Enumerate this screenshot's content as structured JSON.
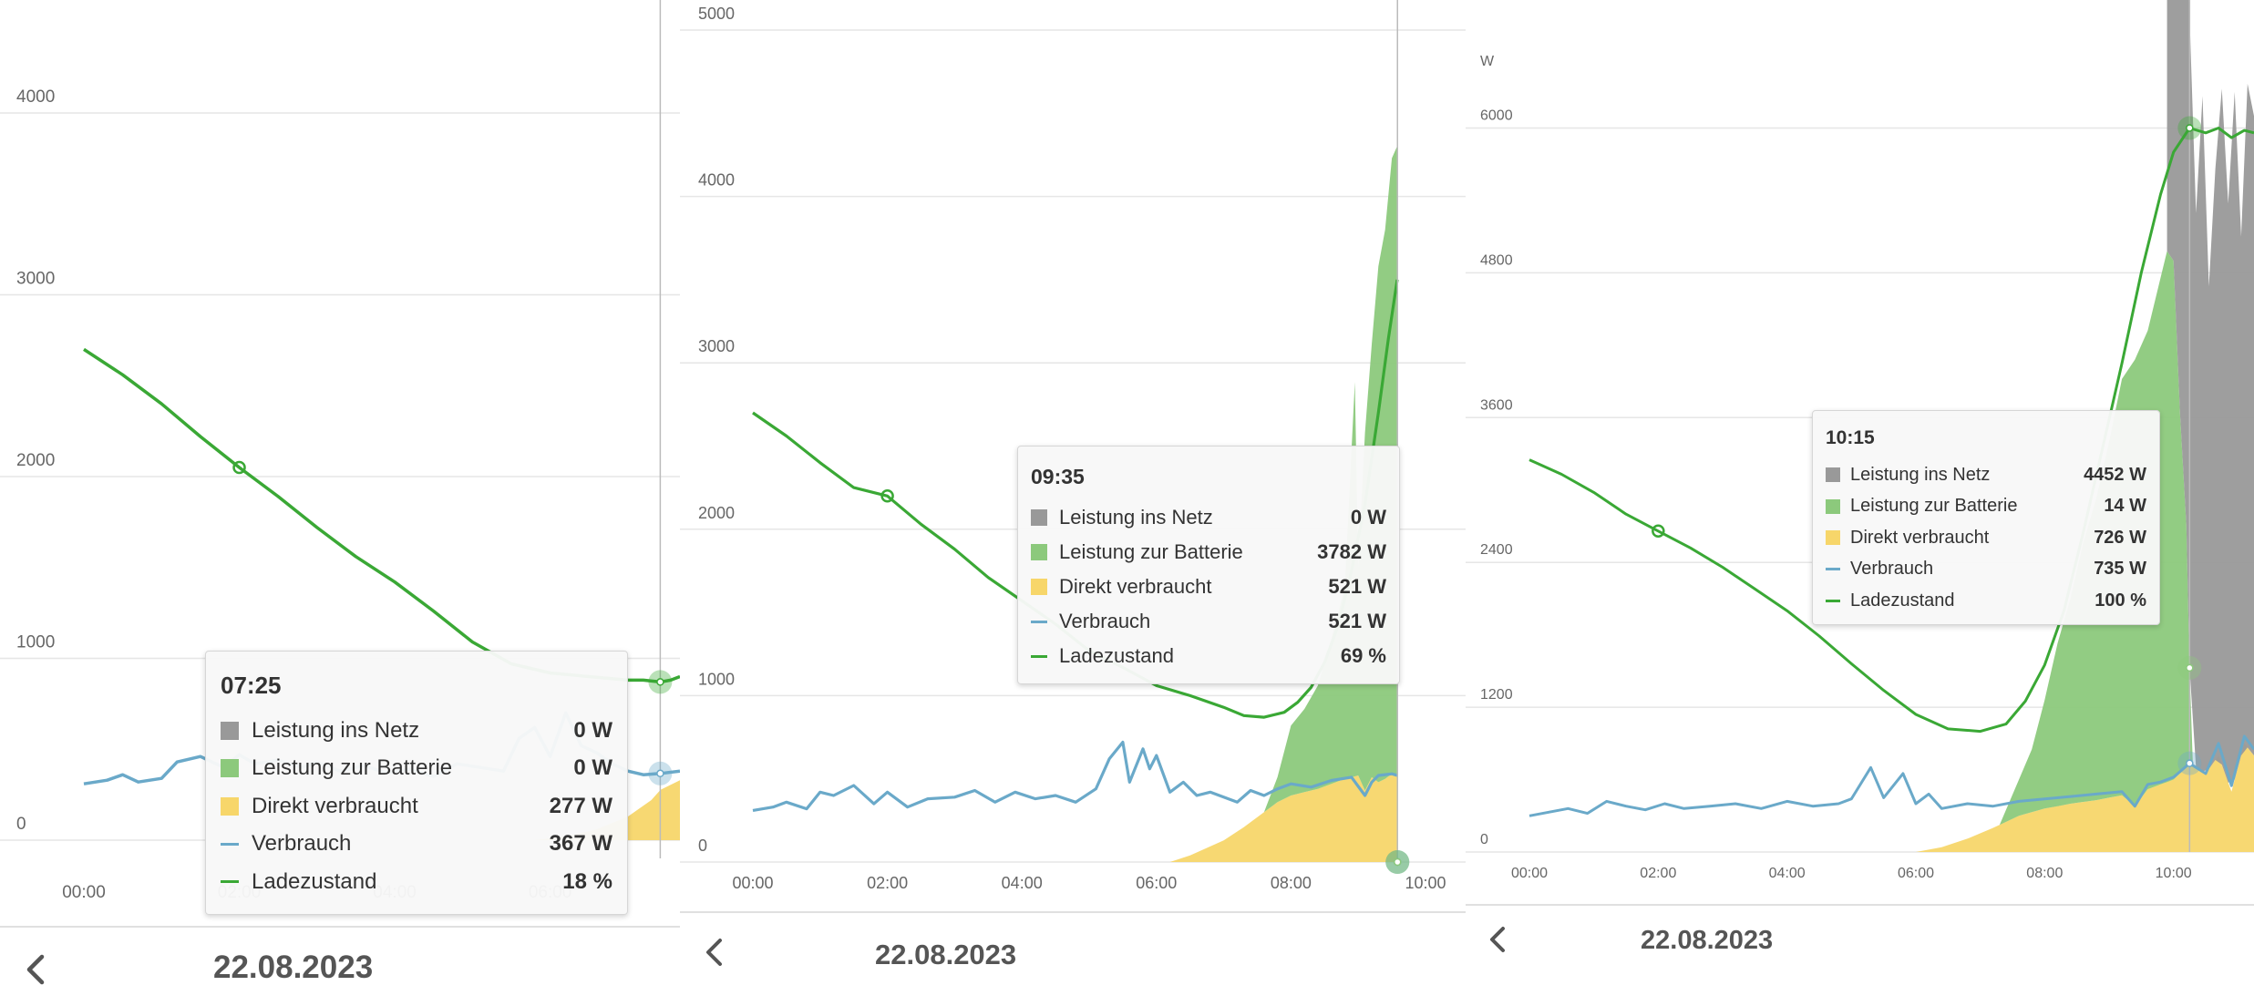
{
  "colors": {
    "grid_feed": "#999999",
    "battery": "#8cc97c",
    "direct": "#f7d66a",
    "consumption": "#6aa9c9",
    "soc": "#3aa835"
  },
  "icons": {
    "back": "chevron-left-icon"
  },
  "panels": [
    {
      "date": "22.08.2023",
      "tooltip": {
        "time": "07:25",
        "rows": [
          {
            "name": "Leistung ins Netz",
            "value": "0 W"
          },
          {
            "name": "Leistung zur Batterie",
            "value": "0 W"
          },
          {
            "name": "Direkt verbraucht",
            "value": "277 W"
          },
          {
            "name": "Verbrauch",
            "value": "367 W"
          },
          {
            "name": "Ladezustand",
            "value": "18 %"
          }
        ]
      }
    },
    {
      "date": "22.08.2023",
      "tooltip": {
        "time": "09:35",
        "rows": [
          {
            "name": "Leistung ins Netz",
            "value": "0 W"
          },
          {
            "name": "Leistung zur Batterie",
            "value": "3782 W"
          },
          {
            "name": "Direkt verbraucht",
            "value": "521 W"
          },
          {
            "name": "Verbrauch",
            "value": "521 W"
          },
          {
            "name": "Ladezustand",
            "value": "69 %"
          }
        ]
      }
    },
    {
      "date": "22.08.2023",
      "tooltip": {
        "time": "10:15",
        "rows": [
          {
            "name": "Leistung ins Netz",
            "value": "4452 W"
          },
          {
            "name": "Leistung zur Batterie",
            "value": "14 W"
          },
          {
            "name": "Direkt verbraucht",
            "value": "726 W"
          },
          {
            "name": "Verbrauch",
            "value": "735 W"
          },
          {
            "name": "Ladezustand",
            "value": "100 %"
          }
        ]
      }
    }
  ],
  "chart_data": [
    {
      "type": "area",
      "ylim": [
        0,
        4700
      ],
      "yticks": [
        "0",
        "1000",
        "2000",
        "3000",
        "4000"
      ],
      "xlim": [
        0,
        7.67
      ],
      "xticks": [
        "00:00",
        "02:00",
        "04:00",
        "06:00",
        "08:00"
      ],
      "cursor": "07:25",
      "series": [
        {
          "name": "Leistung ins Netz",
          "kind": "area",
          "x": [],
          "y": []
        },
        {
          "name": "Leistung zur Batterie",
          "kind": "area",
          "x": [],
          "y": []
        },
        {
          "name": "Direkt verbraucht",
          "kind": "area",
          "x": [
            0,
            5.8,
            6.2,
            6.6,
            7.0,
            7.3,
            7.42,
            7.67
          ],
          "y": [
            0,
            0,
            20,
            60,
            130,
            220,
            277,
            330
          ]
        },
        {
          "name": "Verbrauch",
          "kind": "line",
          "x": [
            0,
            0.3,
            0.5,
            0.7,
            1.0,
            1.2,
            1.5,
            1.8,
            2.0,
            2.2,
            2.5,
            2.8,
            3.0,
            3.3,
            3.6,
            3.9,
            4.2,
            4.5,
            4.8,
            5.1,
            5.4,
            5.6,
            5.8,
            6.0,
            6.2,
            6.4,
            6.6,
            6.8,
            7.0,
            7.2,
            7.42,
            7.67
          ],
          "y": [
            310,
            330,
            360,
            320,
            340,
            430,
            460,
            400,
            470,
            420,
            440,
            400,
            430,
            380,
            410,
            370,
            390,
            350,
            420,
            400,
            380,
            560,
            620,
            460,
            700,
            520,
            480,
            420,
            380,
            360,
            367,
            380
          ]
        },
        {
          "name": "Ladezustand",
          "kind": "line",
          "x": [
            0,
            0.5,
            1.0,
            1.5,
            2.0,
            2.5,
            3.0,
            3.5,
            4.0,
            4.5,
            5.0,
            5.5,
            6.0,
            6.5,
            7.0,
            7.2,
            7.42,
            7.55,
            7.67
          ],
          "y": [
            2700,
            2560,
            2400,
            2220,
            2050,
            1890,
            1720,
            1560,
            1420,
            1260,
            1090,
            970,
            920,
            900,
            880,
            880,
            870,
            880,
            900
          ]
        }
      ]
    },
    {
      "type": "area",
      "ylim": [
        0,
        5000
      ],
      "yticks": [
        "0",
        "1000",
        "2000",
        "3000",
        "4000",
        "5000"
      ],
      "xlim": [
        0,
        10
      ],
      "xticks": [
        "00:00",
        "02:00",
        "04:00",
        "06:00",
        "08:00",
        "10:00"
      ],
      "cursor": "09:35",
      "series": [
        {
          "name": "Leistung ins Netz",
          "kind": "area",
          "x": [],
          "y": []
        },
        {
          "name": "Leistung zur Batterie",
          "kind": "area",
          "x": [
            7.6,
            7.8,
            8.0,
            8.2,
            8.4,
            8.6,
            8.8,
            8.95,
            9.0,
            9.1,
            9.2,
            9.3,
            9.4,
            9.5,
            9.58
          ],
          "y": [
            0,
            150,
            420,
            500,
            620,
            870,
            1150,
            2370,
            1250,
            2150,
            2600,
            3100,
            3300,
            3700,
            3782
          ]
        },
        {
          "name": "Direkt verbraucht",
          "kind": "area",
          "x": [
            6.2,
            6.5,
            7.0,
            7.3,
            7.6,
            7.8,
            8.0,
            8.2,
            8.4,
            8.6,
            8.8,
            9.0,
            9.1,
            9.2,
            9.3,
            9.4,
            9.5,
            9.58
          ],
          "y": [
            0,
            40,
            130,
            210,
            300,
            360,
            400,
            420,
            440,
            470,
            500,
            520,
            430,
            510,
            480,
            500,
            530,
            521
          ]
        },
        {
          "name": "Verbrauch",
          "kind": "line",
          "x": [
            0,
            0.3,
            0.5,
            0.8,
            1.0,
            1.2,
            1.5,
            1.8,
            2.0,
            2.3,
            2.6,
            3.0,
            3.3,
            3.6,
            3.9,
            4.2,
            4.5,
            4.8,
            5.1,
            5.3,
            5.5,
            5.6,
            5.8,
            5.9,
            6.0,
            6.2,
            6.4,
            6.6,
            6.8,
            7.0,
            7.2,
            7.4,
            7.6,
            7.8,
            8.0,
            8.3,
            8.6,
            8.9,
            9.1,
            9.2,
            9.3,
            9.5,
            9.58
          ],
          "y": [
            310,
            330,
            360,
            320,
            420,
            400,
            460,
            350,
            420,
            330,
            380,
            390,
            430,
            360,
            420,
            380,
            400,
            360,
            440,
            620,
            720,
            480,
            680,
            560,
            640,
            420,
            480,
            400,
            420,
            390,
            360,
            430,
            400,
            440,
            470,
            450,
            490,
            510,
            400,
            480,
            520,
            530,
            521
          ]
        },
        {
          "name": "Ladezustand",
          "kind": "line",
          "x": [
            0,
            0.5,
            1.0,
            1.5,
            2.0,
            2.5,
            3.0,
            3.5,
            4.0,
            4.5,
            5.0,
            5.5,
            6.0,
            6.5,
            7.0,
            7.3,
            7.6,
            7.9,
            8.1,
            8.3,
            8.5,
            8.7,
            8.9,
            9.1,
            9.3,
            9.45,
            9.58
          ],
          "y": [
            2700,
            2560,
            2400,
            2250,
            2200,
            2030,
            1880,
            1710,
            1570,
            1430,
            1270,
            1170,
            1060,
            1000,
            930,
            880,
            870,
            900,
            960,
            1050,
            1200,
            1420,
            1750,
            2150,
            2700,
            3150,
            3500
          ]
        }
      ]
    },
    {
      "type": "area",
      "ylim": [
        0,
        6200
      ],
      "yticks": [
        "0",
        "1200",
        "2400",
        "3600",
        "4800",
        "6000"
      ],
      "ylabel": "W",
      "xlim": [
        0,
        11.25
      ],
      "xticks": [
        "00:00",
        "02:00",
        "04:00",
        "06:00",
        "08:00",
        "10:00"
      ],
      "cursor": "10:15",
      "series": [
        {
          "name": "Leistung ins Netz",
          "kind": "area",
          "x": [
            9.9,
            10.0,
            10.1,
            10.2,
            10.25,
            10.35,
            10.45,
            10.55,
            10.65,
            10.75,
            10.85,
            10.95,
            11.05,
            11.15,
            11.25
          ],
          "y": [
            4700,
            4850,
            5000,
            5300,
            5400,
            4600,
            5600,
            4000,
            4900,
            5600,
            4800,
            5700,
            4300,
            5500,
            5300
          ]
        },
        {
          "name": "Leistung zur Batterie",
          "kind": "area",
          "x": [
            7.3,
            7.6,
            7.8,
            8.0,
            8.2,
            8.4,
            8.6,
            8.8,
            9.0,
            9.2,
            9.4,
            9.6,
            9.8,
            9.9,
            10.0,
            10.1,
            10.2,
            10.25,
            10.3
          ],
          "y": [
            0,
            300,
            520,
            900,
            1350,
            1700,
            2150,
            2500,
            2950,
            3450,
            3700,
            3800,
            4200,
            4400,
            4300,
            3000,
            2000,
            800,
            14
          ]
        },
        {
          "name": "Direkt verbraucht",
          "kind": "area",
          "x": [
            6.0,
            6.4,
            6.8,
            7.2,
            7.6,
            8.0,
            8.4,
            8.8,
            9.2,
            9.4,
            9.6,
            9.8,
            10.0,
            10.25,
            10.5,
            10.7,
            10.9,
            11.1,
            11.25
          ],
          "y": [
            0,
            40,
            110,
            200,
            300,
            360,
            400,
            430,
            470,
            380,
            520,
            560,
            600,
            726,
            650,
            800,
            500,
            900,
            800
          ]
        },
        {
          "name": "Verbrauch",
          "kind": "line",
          "x": [
            0,
            0.3,
            0.6,
            0.9,
            1.2,
            1.5,
            1.8,
            2.1,
            2.4,
            2.8,
            3.2,
            3.6,
            4.0,
            4.4,
            4.8,
            5.0,
            5.3,
            5.5,
            5.8,
            6.0,
            6.2,
            6.4,
            6.8,
            7.2,
            7.6,
            8.0,
            8.4,
            8.8,
            9.2,
            9.4,
            9.6,
            9.8,
            10.0,
            10.25,
            10.5,
            10.7,
            10.9,
            11.1,
            11.25
          ],
          "y": [
            300,
            330,
            360,
            320,
            420,
            380,
            350,
            400,
            360,
            380,
            400,
            360,
            420,
            380,
            400,
            440,
            700,
            450,
            650,
            400,
            480,
            360,
            400,
            380,
            420,
            440,
            460,
            480,
            500,
            380,
            560,
            580,
            620,
            735,
            650,
            900,
            550,
            960,
            850
          ]
        },
        {
          "name": "Ladezustand",
          "kind": "line",
          "x": [
            0,
            0.5,
            1.0,
            1.5,
            2.0,
            2.5,
            3.0,
            3.5,
            4.0,
            4.5,
            5.0,
            5.5,
            6.0,
            6.5,
            7.0,
            7.4,
            7.7,
            8.0,
            8.3,
            8.6,
            8.9,
            9.2,
            9.5,
            9.8,
            10.0,
            10.25,
            10.5,
            10.7,
            10.9,
            11.1,
            11.25
          ],
          "y": [
            3250,
            3130,
            2980,
            2800,
            2660,
            2520,
            2360,
            2180,
            2000,
            1790,
            1560,
            1340,
            1140,
            1020,
            1000,
            1060,
            1250,
            1550,
            2000,
            2650,
            3350,
            4050,
            4800,
            5450,
            5800,
            6000,
            5960,
            6000,
            5920,
            5980,
            5960
          ]
        }
      ]
    }
  ]
}
